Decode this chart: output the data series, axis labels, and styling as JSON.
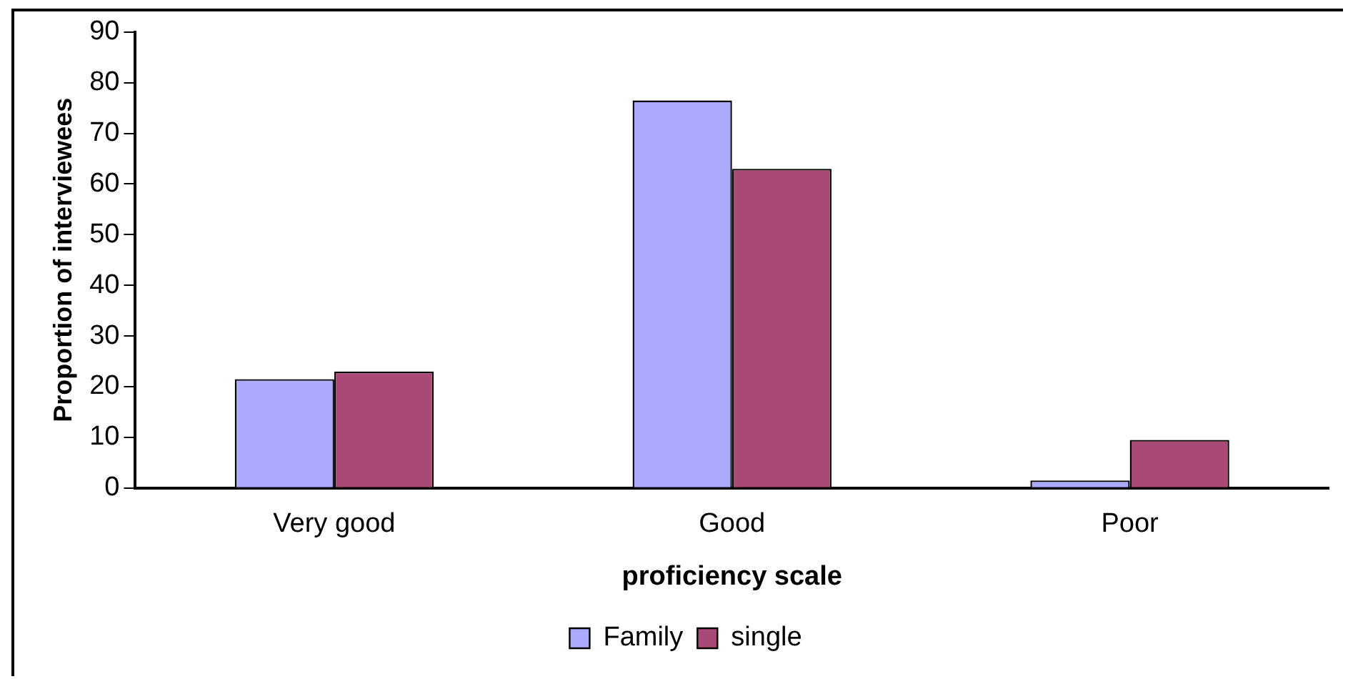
{
  "chart_data": {
    "type": "bar",
    "xlabel": "proficiency scale",
    "ylabel": "Proportion of interviewees",
    "categories": [
      "Very good",
      "Good",
      "Poor"
    ],
    "series": [
      {
        "name": "Family",
        "color": "#aaaaff",
        "values": [
          21.5,
          76.5,
          1.5
        ]
      },
      {
        "name": "single",
        "color": "#a94a76",
        "values": [
          23,
          63,
          9.5
        ]
      }
    ],
    "ylim": [
      0,
      90
    ],
    "yticks": [
      0,
      10,
      20,
      30,
      40,
      50,
      60,
      70,
      80,
      90
    ],
    "grid": false,
    "legend": "bottom"
  }
}
